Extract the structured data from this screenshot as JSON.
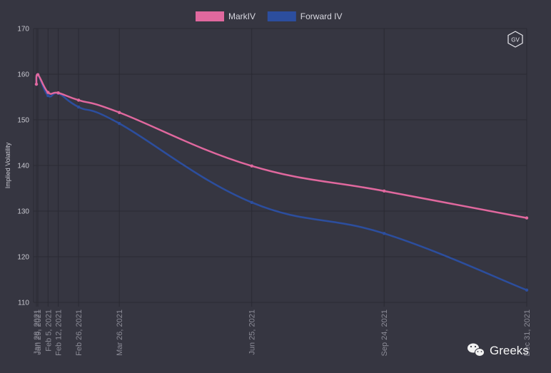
{
  "chart_data": {
    "type": "line",
    "title": "",
    "xlabel": "",
    "ylabel": "Implied Volatility",
    "ylim": [
      110,
      170
    ],
    "y_ticks": [
      110,
      120,
      130,
      140,
      150,
      160,
      170
    ],
    "x_ticks": [
      "Jan 28, 2021",
      "Jan 29, 2021",
      "Feb 5, 2021",
      "Feb 12, 2021",
      "Feb 26, 2021",
      "Mar 26, 2021",
      "Jun 25, 2021",
      "Sep 24, 2021",
      "Dec 31, 2021"
    ],
    "x": [
      "2021-01-28",
      "2021-01-29",
      "2021-02-05",
      "2021-02-12",
      "2021-02-26",
      "2021-03-26",
      "2021-06-25",
      "2021-09-24",
      "2021-12-31"
    ],
    "grid": true,
    "legend_position": "top",
    "series": [
      {
        "name": "MarkIV",
        "color": "#e0689e",
        "values": [
          157.8,
          159.9,
          156.0,
          155.9,
          154.3,
          151.6,
          139.9,
          134.4,
          128.5
        ]
      },
      {
        "name": "Forward IV",
        "color": "#2c4e9e",
        "values": [
          157.8,
          159.9,
          155.3,
          155.8,
          152.8,
          149.2,
          131.9,
          125.1,
          112.7
        ]
      }
    ]
  },
  "logo": {
    "text": "GV"
  },
  "watermark": {
    "text": "Greeks"
  },
  "colors": {
    "background": "#363641",
    "grid": "#2a2a33",
    "axis_text": "#8b8b96"
  }
}
